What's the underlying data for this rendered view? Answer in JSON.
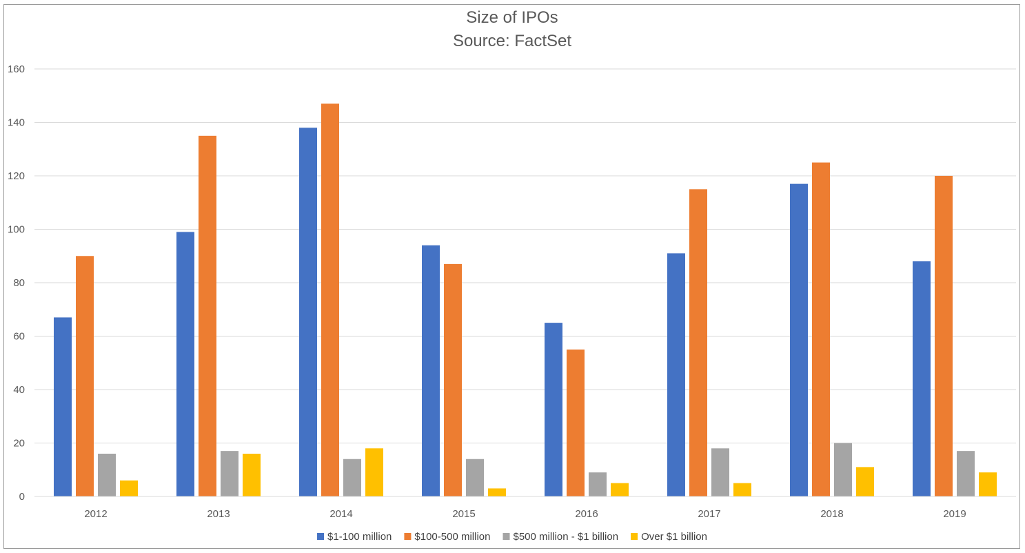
{
  "chart_data": {
    "type": "bar",
    "title": "Size of IPOs",
    "subtitle": "Source: FactSet",
    "categories": [
      "2012",
      "2013",
      "2014",
      "2015",
      "2016",
      "2017",
      "2018",
      "2019"
    ],
    "series": [
      {
        "name": "$1-100 million",
        "color": "#4472C4",
        "values": [
          67,
          99,
          138,
          94,
          65,
          91,
          117,
          88
        ]
      },
      {
        "name": "$100-500 million",
        "color": "#ED7D31",
        "values": [
          90,
          135,
          147,
          87,
          55,
          115,
          125,
          120
        ]
      },
      {
        "name": "$500 million - $1 billion",
        "color": "#A5A5A5",
        "values": [
          16,
          17,
          14,
          14,
          9,
          18,
          20,
          17
        ]
      },
      {
        "name": "Over $1 billion",
        "color": "#FFC000",
        "values": [
          6,
          16,
          18,
          3,
          5,
          5,
          11,
          9
        ]
      }
    ],
    "ylim": [
      0,
      160
    ],
    "yticks": [
      "0",
      "20",
      "40",
      "60",
      "80",
      "100",
      "120",
      "140",
      "160"
    ],
    "grid": true,
    "legend_position": "bottom"
  }
}
